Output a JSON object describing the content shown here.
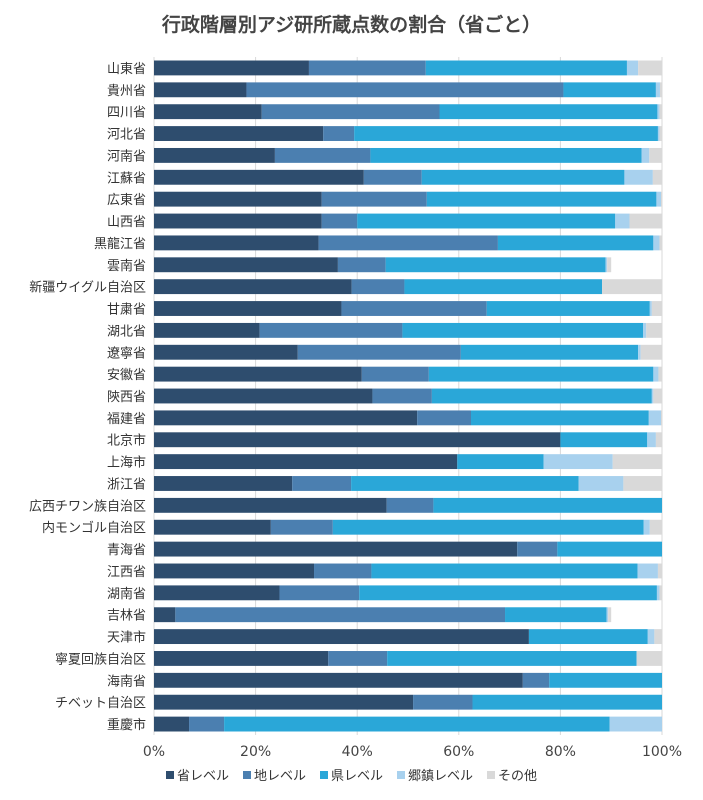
{
  "chart_data": {
    "type": "bar",
    "orientation": "horizontal",
    "stacked": true,
    "title": "行政階層別アジ研所蔵点数の割合（省ごと）",
    "categories": [
      "山東省",
      "貴州省",
      "四川省",
      "河北省",
      "河南省",
      "江蘇省",
      "広東省",
      "山西省",
      "黒龍江省",
      "雲南省",
      "新疆ウイグル自治区",
      "甘粛省",
      "湖北省",
      "遼寧省",
      "安徽省",
      "陝西省",
      "福建省",
      "北京市",
      "上海市",
      "浙江省",
      "広西チワン族自治区",
      "内モンゴル自治区",
      "青海省",
      "江西省",
      "湖南省",
      "吉林省",
      "天津市",
      "寧夏回族自治区",
      "海南省",
      "チベット自治区",
      "重慶市"
    ],
    "series": [
      {
        "name": "省レベル",
        "color": "#2e4d6e",
        "values": [
          30.5,
          18.2,
          21.2,
          33.3,
          23.8,
          41.3,
          33.0,
          33.0,
          32.4,
          36.2,
          38.9,
          36.9,
          20.8,
          28.3,
          40.9,
          43.0,
          51.8,
          80.0,
          59.7,
          27.2,
          45.8,
          23.0,
          71.5,
          31.5,
          24.7,
          4.2,
          73.8,
          34.3,
          72.6,
          51.0,
          6.9
        ]
      },
      {
        "name": "地レベル",
        "color": "#4b7fb0",
        "values": [
          23.0,
          62.4,
          35.0,
          6.1,
          18.8,
          11.4,
          20.7,
          7.0,
          35.3,
          9.4,
          10.4,
          28.6,
          28.1,
          32.1,
          13.2,
          11.7,
          10.6,
          0,
          0,
          11.6,
          9.2,
          12.2,
          7.9,
          11.3,
          15.7,
          64.9,
          0,
          11.6,
          5.2,
          11.7,
          6.9
        ]
      },
      {
        "name": "県レベル",
        "color": "#2aa7d8",
        "values": [
          39.6,
          18.2,
          42.9,
          59.8,
          53.4,
          39.9,
          45.2,
          50.8,
          30.6,
          43.3,
          38.9,
          32.1,
          47.4,
          34.9,
          44.2,
          43.3,
          35.0,
          17.1,
          17.0,
          44.8,
          45.0,
          61.2,
          20.6,
          52.4,
          58.6,
          20.0,
          23.4,
          49.1,
          22.2,
          37.3,
          75.9
        ]
      },
      {
        "name": "郷鎮レベル",
        "color": "#a8d1ee",
        "values": [
          2.2,
          0.8,
          0.4,
          0.3,
          1.5,
          5.6,
          0.9,
          2.8,
          1.2,
          0.3,
          0,
          0.4,
          0.6,
          0.5,
          1.0,
          0.3,
          2.4,
          1.7,
          13.6,
          8.8,
          0,
          1.2,
          0,
          4.0,
          0.5,
          0.3,
          1.3,
          0,
          0,
          0,
          10.3
        ]
      },
      {
        "name": "その他",
        "color": "#d9d9d9",
        "values": [
          4.7,
          0.4,
          0.5,
          0.5,
          2.5,
          1.8,
          1.2,
          6.4,
          0.5,
          0.8,
          11.8,
          2.0,
          3.1,
          4.2,
          0.7,
          1.7,
          0.2,
          1.2,
          9.7,
          7.6,
          0,
          2.4,
          0,
          0.8,
          0.5,
          0.6,
          1.5,
          5.0,
          0,
          0,
          0
        ]
      }
    ],
    "xlim": [
      0,
      100
    ],
    "xticks": [
      "0%",
      "20%",
      "40%",
      "60%",
      "80%",
      "100%"
    ],
    "grid": true,
    "legend": "bottom"
  }
}
